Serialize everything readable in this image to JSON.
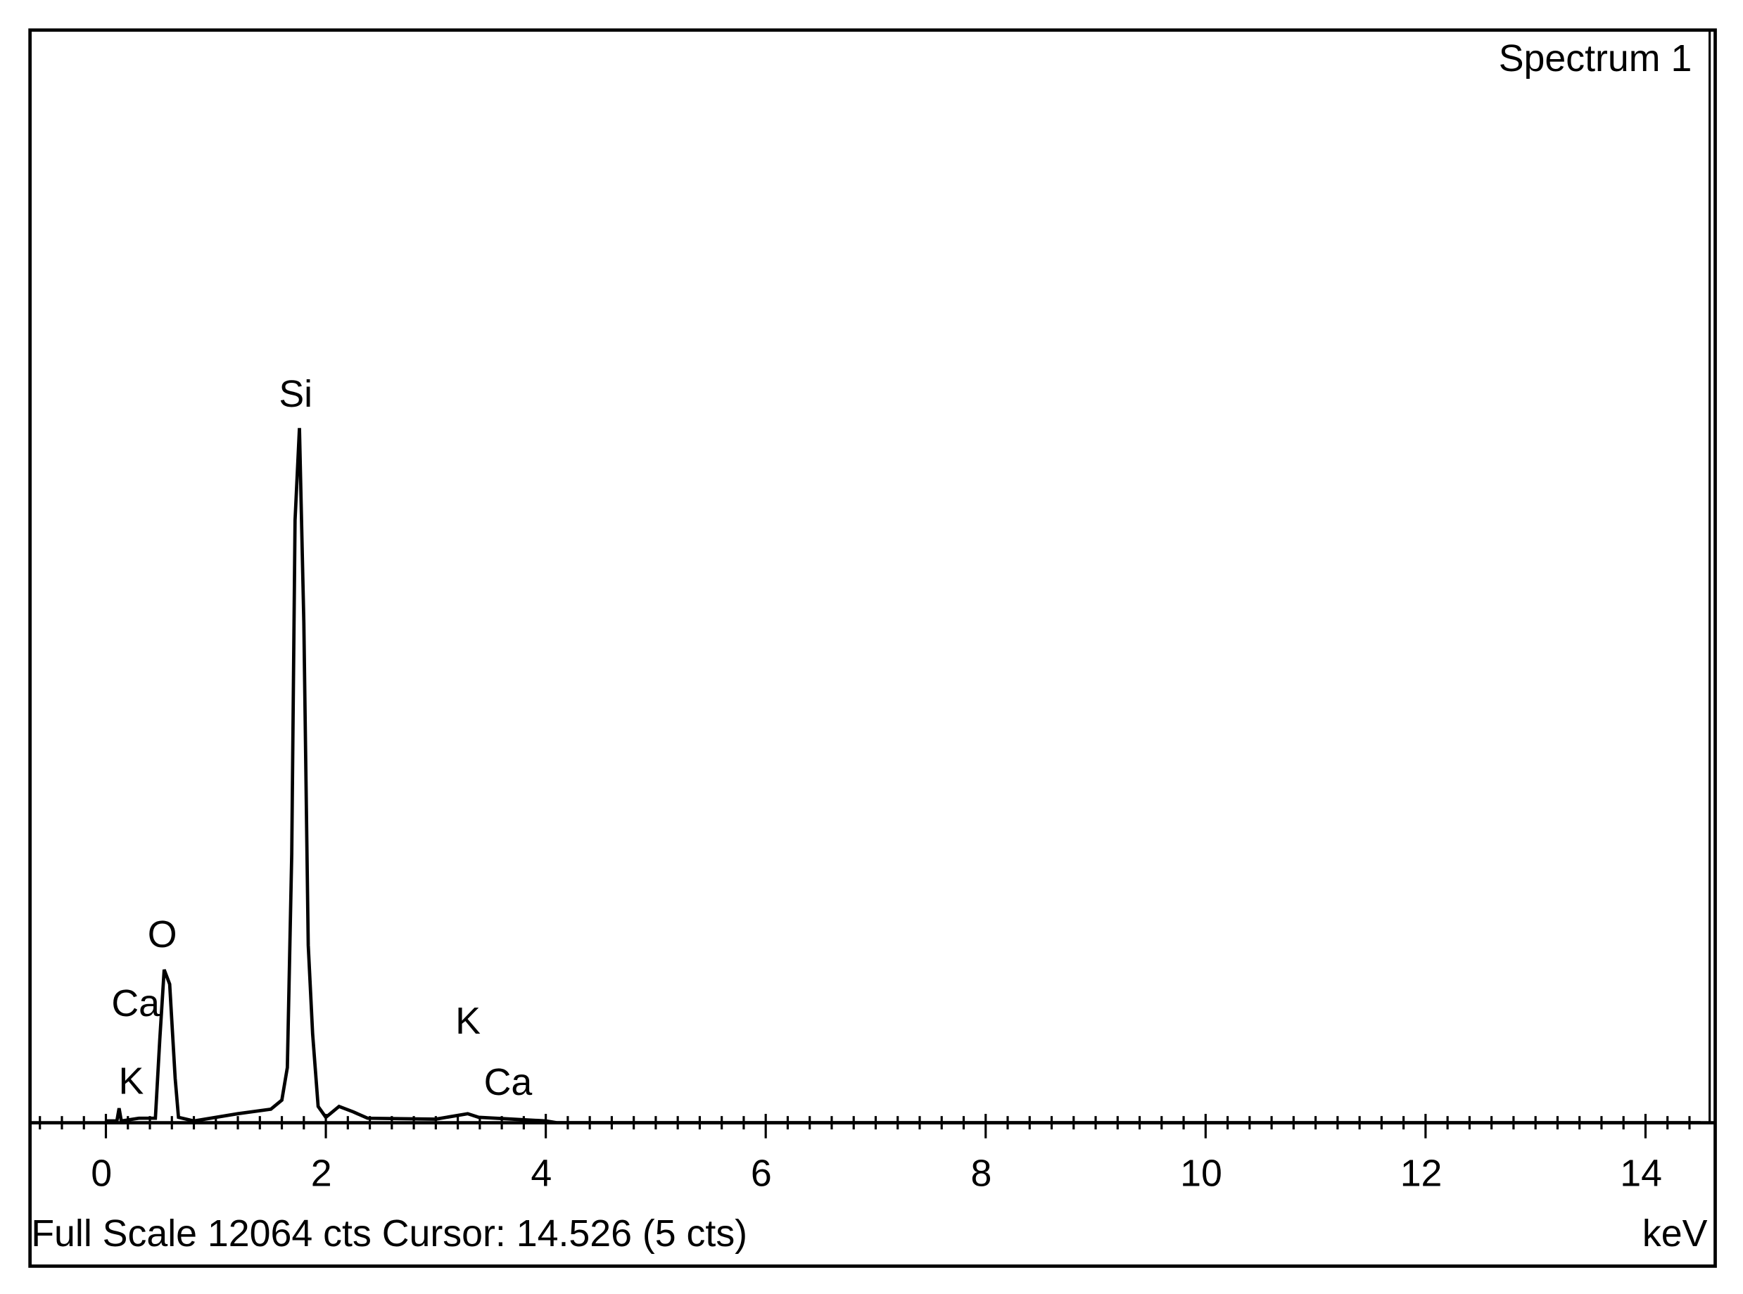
{
  "chart_data": {
    "type": "line",
    "title": "Spectrum 1",
    "footer": "Full Scale 12064 cts Cursor: 14.526  (5 cts)",
    "x_label": "keV",
    "annotations": [
      "Si",
      "O",
      "Ca",
      "K",
      "K",
      "Ca"
    ],
    "x": [
      0,
      0.1,
      0.12,
      0.14,
      0.3,
      0.45,
      0.49,
      0.53,
      0.58,
      0.63,
      0.66,
      0.8,
      1.2,
      1.5,
      1.6,
      1.65,
      1.69,
      1.72,
      1.76,
      1.8,
      1.84,
      1.88,
      1.93,
      2.0,
      2.12,
      2.25,
      2.38,
      3.0,
      3.29,
      3.39,
      3.7,
      4.0,
      4.1,
      14.5
    ],
    "series": [
      {
        "name": "Spectrum 1",
        "color": "#000000",
        "values": [
          20,
          20,
          160,
          20,
          50,
          50,
          920,
          1690,
          1530,
          490,
          60,
          20,
          100,
          150,
          250,
          610,
          2970,
          6650,
          7670,
          5520,
          1960,
          980,
          180,
          60,
          180,
          120,
          50,
          40,
          100,
          60,
          40,
          20,
          0,
          0
        ]
      }
    ],
    "xlim": [
      -0.69,
      14.553
    ],
    "ylim": [
      0,
      12064
    ],
    "xticks": [
      0,
      2,
      4,
      6,
      8,
      10,
      12,
      14
    ],
    "xminorticks": [
      -0.6,
      -0.4,
      -0.2,
      0.2,
      0.4,
      0.6,
      0.8,
      1,
      1.2,
      1.4,
      1.6,
      1.8,
      2.2,
      2.4,
      2.6,
      2.8,
      3,
      3.2,
      3.4,
      3.6,
      3.8,
      4.2,
      4.4,
      4.6,
      4.8,
      5,
      5.2,
      5.4,
      5.6,
      5.8,
      6.2,
      6.4,
      6.6,
      6.8,
      7,
      7.2,
      7.4,
      7.6,
      7.8,
      8.2,
      8.4,
      8.6,
      8.8,
      9,
      9.2,
      9.4,
      9.6,
      9.8,
      10.2,
      10.4,
      10.6,
      10.8,
      11,
      11.2,
      11.4,
      11.6,
      11.8,
      12.2,
      12.4,
      12.6,
      12.8,
      13,
      13.2,
      13.4,
      13.6,
      13.8,
      14.2,
      14.4
    ]
  }
}
